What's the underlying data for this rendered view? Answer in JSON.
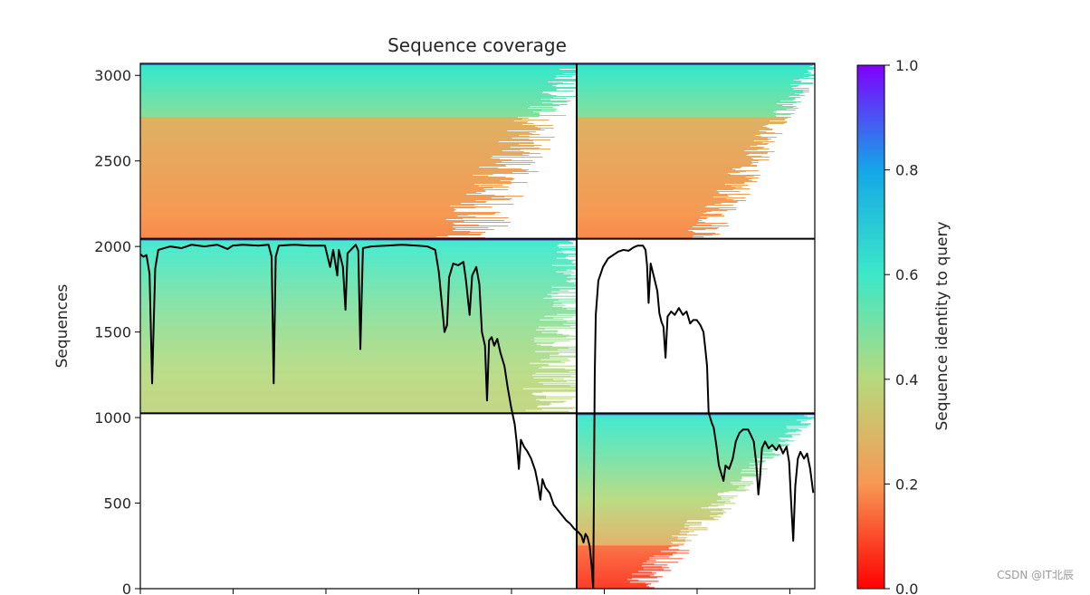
{
  "chart_data": {
    "type": "heatmap",
    "title": "Sequence coverage",
    "ylabel": "Sequences",
    "xlabel": "",
    "ylim": [
      0,
      3070
    ],
    "yticks": [
      0,
      500,
      1000,
      1500,
      2000,
      2500,
      3000
    ],
    "ytick_labels": [
      "0",
      "500",
      "1000",
      "1500",
      "2000",
      "2500",
      "3000"
    ],
    "colorbar": {
      "label": "Sequence identity to query",
      "range": [
        0.0,
        1.0
      ],
      "ticks": [
        0.0,
        0.2,
        0.4,
        0.6,
        0.8,
        1.0
      ],
      "tick_labels": [
        "0.0",
        "0.2",
        "0.4",
        "0.6",
        "0.8",
        "1.0"
      ],
      "colormap": "rainbow_r"
    },
    "blocks": [
      {
        "name": "block-top-left",
        "col": 0,
        "row": 2,
        "y_range": [
          2045,
          3070
        ],
        "identity_bottom": 0.18,
        "identity_top": 0.62,
        "switch_frac": 0.7,
        "coverage_bottom": 0.74,
        "coverage_top": 1.0
      },
      {
        "name": "block-top-right",
        "col": 1,
        "row": 2,
        "y_range": [
          2045,
          3070
        ],
        "identity_bottom": 0.18,
        "identity_top": 0.62,
        "switch_frac": 0.7,
        "coverage_bottom": 0.53,
        "coverage_top": 1.0
      },
      {
        "name": "block-middle-left",
        "col": 0,
        "row": 1,
        "y_range": [
          1025,
          2045
        ],
        "identity_bottom": 0.38,
        "identity_top": 0.62,
        "switch_frac": 1.0,
        "coverage_bottom": 0.95,
        "coverage_top": 1.0
      },
      {
        "name": "block-bottom-right",
        "col": 1,
        "row": 0,
        "y_range": [
          0,
          1025
        ],
        "identity_bottom": 0.05,
        "identity_top": 0.62,
        "switch_frac": 0.4,
        "coverage_bottom": 0.25,
        "coverage_top": 0.98
      }
    ],
    "coverage_line": {
      "name": "Coverage",
      "color": "#000000",
      "points": [
        [
          0.0,
          1955
        ],
        [
          0.6,
          1940
        ],
        [
          1.2,
          1950
        ],
        [
          1.8,
          1840
        ],
        [
          2.3,
          1200
        ],
        [
          2.9,
          1870
        ],
        [
          3.5,
          1980
        ],
        [
          5.8,
          2000
        ],
        [
          8.0,
          1990
        ],
        [
          10.0,
          2010
        ],
        [
          12.5,
          2000
        ],
        [
          15.0,
          2010
        ],
        [
          17.0,
          1985
        ],
        [
          18.0,
          2005
        ],
        [
          20.0,
          2010
        ],
        [
          23.0,
          2005
        ],
        [
          25.0,
          2010
        ],
        [
          25.6,
          1940
        ],
        [
          26.0,
          1200
        ],
        [
          26.4,
          1940
        ],
        [
          27.0,
          2005
        ],
        [
          30.0,
          2010
        ],
        [
          33.0,
          2005
        ],
        [
          36.0,
          2005
        ],
        [
          37.0,
          1880
        ],
        [
          37.6,
          1980
        ],
        [
          38.4,
          1830
        ],
        [
          38.7,
          1980
        ],
        [
          39.5,
          1880
        ],
        [
          40.0,
          1630
        ],
        [
          40.4,
          1960
        ],
        [
          42.0,
          2010
        ],
        [
          42.5,
          1975
        ],
        [
          42.9,
          1400
        ],
        [
          43.4,
          1990
        ],
        [
          45.0,
          2000
        ],
        [
          48.0,
          2005
        ],
        [
          51.0,
          2010
        ],
        [
          54.0,
          2005
        ],
        [
          56.0,
          2000
        ],
        [
          57.5,
          1980
        ],
        [
          58.2,
          1850
        ],
        [
          59.0,
          1600
        ],
        [
          59.3,
          1500
        ],
        [
          59.8,
          1540
        ],
        [
          60.2,
          1820
        ],
        [
          61.0,
          1900
        ],
        [
          62.0,
          1890
        ],
        [
          63.0,
          1910
        ],
        [
          63.5,
          1800
        ],
        [
          64.2,
          1600
        ],
        [
          64.7,
          1830
        ],
        [
          65.5,
          1880
        ],
        [
          66.1,
          1780
        ],
        [
          66.6,
          1500
        ],
        [
          67.2,
          1420
        ],
        [
          67.6,
          1100
        ],
        [
          68.0,
          1450
        ],
        [
          68.5,
          1470
        ],
        [
          69.0,
          1420
        ],
        [
          69.6,
          1460
        ],
        [
          70.2,
          1380
        ],
        [
          71.0,
          1300
        ],
        [
          71.6,
          1180
        ],
        [
          72.3,
          1060
        ],
        [
          73.0,
          960
        ],
        [
          73.4,
          850
        ],
        [
          73.8,
          700
        ],
        [
          74.2,
          870
        ],
        [
          74.8,
          830
        ],
        [
          75.5,
          800
        ],
        [
          76.2,
          760
        ],
        [
          77.0,
          690
        ],
        [
          77.6,
          600
        ],
        [
          78.0,
          520
        ],
        [
          78.4,
          640
        ],
        [
          79.0,
          590
        ],
        [
          79.8,
          560
        ],
        [
          80.6,
          490
        ],
        [
          81.4,
          460
        ],
        [
          82.2,
          430
        ],
        [
          83.0,
          400
        ],
        [
          83.8,
          380
        ],
        [
          84.6,
          350
        ],
        [
          85.4,
          330
        ],
        [
          86.0,
          310
        ],
        [
          86.4,
          270
        ],
        [
          86.8,
          320
        ],
        [
          87.2,
          300
        ],
        [
          87.6,
          250
        ],
        [
          88.0,
          130
        ],
        [
          88.3,
          0
        ],
        [
          88.6,
          1250
        ],
        [
          88.8,
          1600
        ],
        [
          89.3,
          1800
        ],
        [
          90.2,
          1880
        ],
        [
          91.2,
          1930
        ],
        [
          92.2,
          1950
        ],
        [
          93.2,
          1970
        ],
        [
          94.2,
          1980
        ],
        [
          95.2,
          1975
        ],
        [
          96.2,
          1995
        ],
        [
          97.0,
          2005
        ],
        [
          98.0,
          2005
        ],
        [
          98.5,
          1980
        ],
        [
          98.8,
          1890
        ],
        [
          99.1,
          1670
        ],
        [
          99.5,
          1900
        ],
        [
          100.0,
          1840
        ],
        [
          100.8,
          1740
        ],
        [
          101.2,
          1610
        ],
        [
          101.6,
          1560
        ],
        [
          102.0,
          1530
        ],
        [
          102.4,
          1350
        ],
        [
          102.8,
          1590
        ],
        [
          103.5,
          1620
        ],
        [
          104.2,
          1600
        ],
        [
          105.0,
          1640
        ],
        [
          105.8,
          1600
        ],
        [
          106.5,
          1620
        ],
        [
          107.2,
          1550
        ],
        [
          107.8,
          1570
        ],
        [
          108.5,
          1570
        ],
        [
          109.2,
          1540
        ],
        [
          109.8,
          1500
        ],
        [
          110.2,
          1390
        ],
        [
          110.5,
          1300
        ],
        [
          110.8,
          1030
        ],
        [
          111.4,
          970
        ],
        [
          111.8,
          940
        ],
        [
          112.3,
          840
        ],
        [
          112.8,
          720
        ],
        [
          113.2,
          680
        ],
        [
          113.7,
          630
        ],
        [
          114.1,
          720
        ],
        [
          114.8,
          700
        ],
        [
          115.5,
          760
        ],
        [
          116.1,
          860
        ],
        [
          116.8,
          910
        ],
        [
          117.5,
          930
        ],
        [
          118.5,
          930
        ],
        [
          119.0,
          900
        ],
        [
          119.6,
          860
        ],
        [
          120.1,
          730
        ],
        [
          120.5,
          550
        ],
        [
          120.8,
          640
        ],
        [
          121.2,
          820
        ],
        [
          121.8,
          860
        ],
        [
          122.5,
          820
        ],
        [
          123.2,
          840
        ],
        [
          124.0,
          810
        ],
        [
          124.6,
          840
        ],
        [
          125.3,
          790
        ],
        [
          126.0,
          830
        ],
        [
          126.5,
          740
        ],
        [
          126.9,
          500
        ],
        [
          127.3,
          280
        ],
        [
          127.7,
          600
        ],
        [
          128.2,
          760
        ],
        [
          128.7,
          800
        ],
        [
          129.4,
          760
        ],
        [
          130.0,
          790
        ],
        [
          130.6,
          700
        ],
        [
          131.2,
          560
        ]
      ]
    },
    "xlim": [
      0,
      131.5
    ],
    "xtick_count": 8
  },
  "watermark": "CSDN @IT北辰"
}
